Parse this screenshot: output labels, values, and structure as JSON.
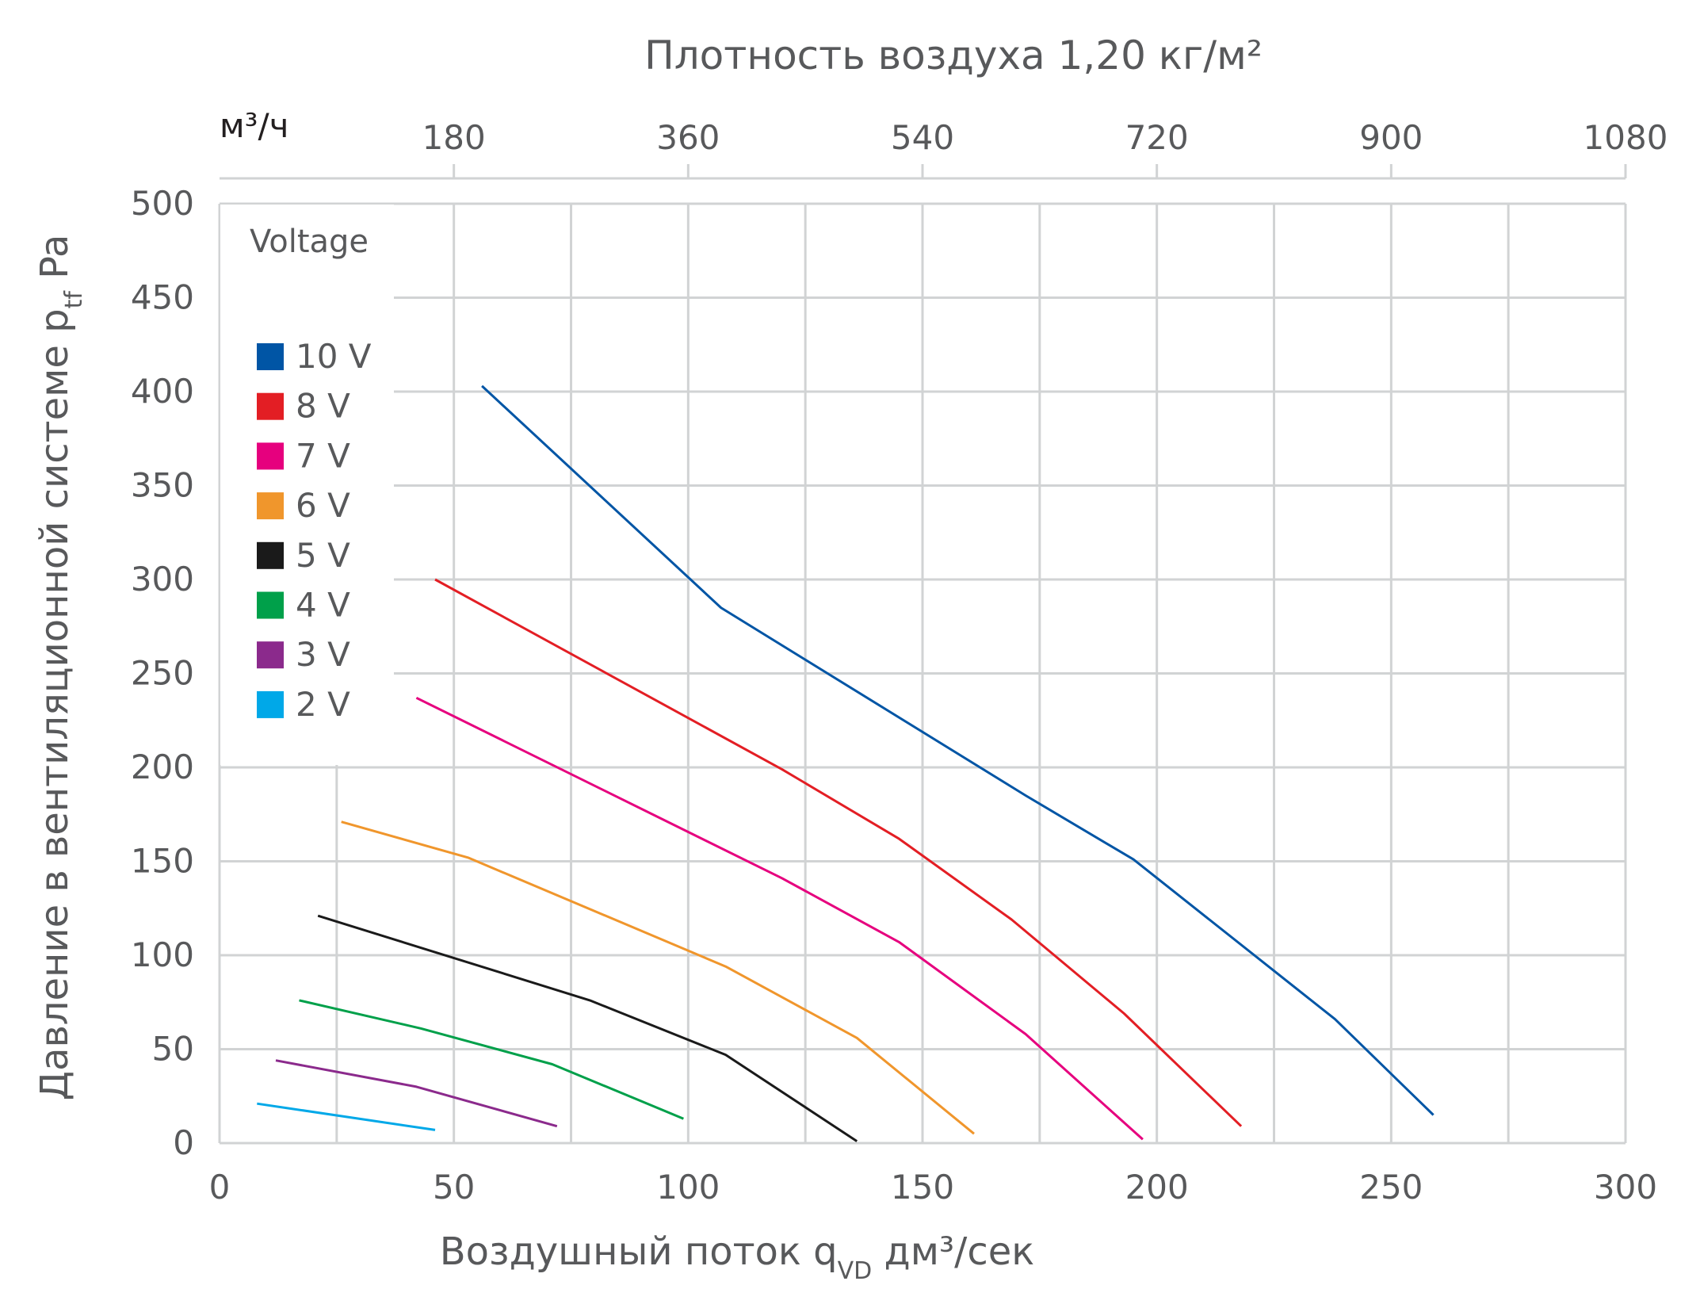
{
  "chart_data": {
    "type": "line",
    "title": "Плотность воздуха 1,20 кг/м²",
    "xlabel": {
      "main": "Воздушный поток q",
      "sub": "VD",
      "tail": " дм³/сек"
    },
    "ylabel": {
      "main": "Давление в вентиляционной системе p",
      "sub": "tf",
      "tail": " Pa"
    },
    "xlim": [
      0,
      300
    ],
    "ylim": [
      0,
      500
    ],
    "x_ticks": [
      "0",
      "50",
      "100",
      "150",
      "200",
      "250",
      "300"
    ],
    "y_ticks": [
      "0",
      "50",
      "100",
      "150",
      "200",
      "250",
      "300",
      "350",
      "400",
      "450",
      "500"
    ],
    "x_grid_step": 25,
    "y_grid_step": 50,
    "grid": true,
    "top_axis": {
      "label": "м³/ч",
      "ticks": [
        "180",
        "360",
        "540",
        "720",
        "900",
        "1080"
      ],
      "tick_values_m3h": [
        180,
        360,
        540,
        720,
        900,
        1080
      ],
      "conversion": 3.6
    },
    "legend": {
      "title": "Voltage",
      "position": "top-left"
    },
    "series": [
      {
        "name": "10 V",
        "color": "#0055a5",
        "points": [
          [
            56,
            403
          ],
          [
            107,
            285
          ],
          [
            172,
            185
          ],
          [
            195,
            151
          ],
          [
            238,
            66
          ],
          [
            259,
            15
          ]
        ]
      },
      {
        "name": "8 V",
        "color": "#e31e24",
        "points": [
          [
            46,
            300
          ],
          [
            120,
            199
          ],
          [
            145,
            162
          ],
          [
            169,
            119
          ],
          [
            193,
            69
          ],
          [
            218,
            9
          ]
        ]
      },
      {
        "name": "7 V",
        "color": "#e6007e",
        "points": [
          [
            42,
            237
          ],
          [
            120,
            141
          ],
          [
            145,
            107
          ],
          [
            172,
            58
          ],
          [
            197,
            2
          ]
        ]
      },
      {
        "name": "6 V",
        "color": "#f0962c",
        "points": [
          [
            26,
            171
          ],
          [
            53,
            152
          ],
          [
            108,
            94
          ],
          [
            136,
            56
          ],
          [
            161,
            5
          ]
        ]
      },
      {
        "name": "5 V",
        "color": "#1a1a1a",
        "points": [
          [
            21,
            121
          ],
          [
            79,
            76
          ],
          [
            108,
            47
          ],
          [
            136,
            1
          ]
        ]
      },
      {
        "name": "4 V",
        "color": "#00a04a",
        "points": [
          [
            17,
            76
          ],
          [
            43,
            61
          ],
          [
            71,
            42
          ],
          [
            99,
            13
          ]
        ]
      },
      {
        "name": "3 V",
        "color": "#8b2a8c",
        "points": [
          [
            12,
            44
          ],
          [
            42,
            30
          ],
          [
            72,
            9
          ]
        ]
      },
      {
        "name": "2 V",
        "color": "#00a8e8",
        "points": [
          [
            8,
            21
          ],
          [
            46,
            7
          ]
        ]
      }
    ]
  }
}
